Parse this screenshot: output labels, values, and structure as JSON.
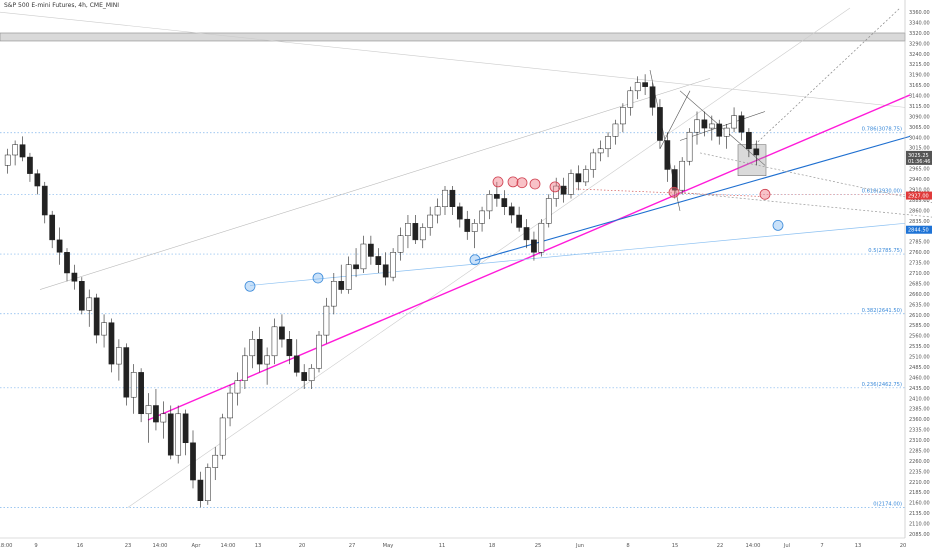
{
  "chart_data": {
    "type": "candlestick",
    "title": "S&P 500 E-mini Futures, 4h, CME_MINI",
    "y_axis": {
      "position": "right",
      "range": [
        2100,
        3380
      ],
      "tick_labels": [
        "3360.00",
        "3340.00",
        "3320.00",
        "3290.00",
        "3240.00",
        "3215.00",
        "3190.00",
        "3165.00",
        "3140.00",
        "3115.00",
        "3090.00",
        "3065.00",
        "3040.00",
        "3015.00",
        "2990.00",
        "2965.00",
        "2940.00",
        "2910.00",
        "2885.00",
        "2860.00",
        "2835.00",
        "2810.00",
        "2785.00",
        "2760.00",
        "2735.00",
        "2710.00",
        "2685.00",
        "2660.00",
        "2635.00",
        "2610.00",
        "2585.00",
        "2560.00",
        "2535.00",
        "2510.00",
        "2485.00",
        "2460.00",
        "2435.00",
        "2410.00",
        "2385.00",
        "2360.00",
        "2335.00",
        "2310.00",
        "2285.00",
        "2260.00",
        "2235.00",
        "2210.00",
        "2185.00",
        "2160.00",
        "2135.00",
        "2110.00",
        "2085.00"
      ]
    },
    "x_axis": {
      "tick_labels": [
        "18:00",
        "9",
        "16",
        "23",
        "14:00",
        "Apr",
        "14:00",
        "13",
        "20",
        "27",
        "May",
        "11",
        "18",
        "25",
        "Jun",
        "8",
        "15",
        "22",
        "14:00",
        "Jul",
        "7",
        "13",
        "20"
      ]
    },
    "price_labels": [
      {
        "text": "3025.25",
        "sub": "01:36:46",
        "value": 3025.25,
        "color": "#555555"
      },
      {
        "text": "2927.00",
        "value": 2927,
        "color": "#e03a3a"
      },
      {
        "text": "2844.50",
        "value": 2844.5,
        "color": "#1e73d6"
      }
    ],
    "fib_levels": [
      {
        "label": "0.786(3078.75)",
        "value": 3078.75
      },
      {
        "label": "0.618(2930.00)",
        "value": 2930
      },
      {
        "label": "0.5(2785.75)",
        "value": 2785.75
      },
      {
        "label": "0.382(2641.50)",
        "value": 2641.5
      },
      {
        "label": "0.236(2462.75)",
        "value": 2462.75
      },
      {
        "label": "0(2174.00)",
        "value": 2174
      }
    ],
    "candles": [
      [
        3000,
        3040,
        2980,
        3025
      ],
      [
        3025,
        3060,
        3000,
        3050
      ],
      [
        3050,
        3070,
        3010,
        3020
      ],
      [
        3020,
        3030,
        2960,
        2980
      ],
      [
        2980,
        2990,
        2930,
        2950
      ],
      [
        2950,
        2960,
        2860,
        2880
      ],
      [
        2880,
        2890,
        2800,
        2820
      ],
      [
        2820,
        2850,
        2760,
        2790
      ],
      [
        2790,
        2800,
        2720,
        2740
      ],
      [
        2740,
        2760,
        2700,
        2720
      ],
      [
        2720,
        2730,
        2640,
        2650
      ],
      [
        2650,
        2700,
        2610,
        2680
      ],
      [
        2680,
        2690,
        2570,
        2590
      ],
      [
        2590,
        2640,
        2560,
        2620
      ],
      [
        2620,
        2630,
        2500,
        2520
      ],
      [
        2520,
        2580,
        2480,
        2560
      ],
      [
        2560,
        2570,
        2420,
        2440
      ],
      [
        2440,
        2520,
        2400,
        2500
      ],
      [
        2500,
        2510,
        2380,
        2400
      ],
      [
        2400,
        2450,
        2330,
        2420
      ],
      [
        2420,
        2460,
        2360,
        2380
      ],
      [
        2380,
        2430,
        2340,
        2400
      ],
      [
        2400,
        2420,
        2290,
        2300
      ],
      [
        2300,
        2420,
        2280,
        2400
      ],
      [
        2400,
        2410,
        2300,
        2330
      ],
      [
        2330,
        2360,
        2220,
        2240
      ],
      [
        2240,
        2260,
        2174,
        2190
      ],
      [
        2190,
        2280,
        2180,
        2270
      ],
      [
        2270,
        2320,
        2240,
        2300
      ],
      [
        2300,
        2400,
        2290,
        2390
      ],
      [
        2390,
        2470,
        2370,
        2450
      ],
      [
        2450,
        2500,
        2420,
        2480
      ],
      [
        2480,
        2560,
        2460,
        2540
      ],
      [
        2540,
        2600,
        2510,
        2580
      ],
      [
        2580,
        2610,
        2500,
        2520
      ],
      [
        2520,
        2560,
        2470,
        2540
      ],
      [
        2540,
        2630,
        2520,
        2610
      ],
      [
        2610,
        2640,
        2560,
        2580
      ],
      [
        2580,
        2600,
        2520,
        2540
      ],
      [
        2540,
        2580,
        2490,
        2500
      ],
      [
        2500,
        2520,
        2460,
        2480
      ],
      [
        2480,
        2520,
        2460,
        2510
      ],
      [
        2510,
        2600,
        2500,
        2590
      ],
      [
        2590,
        2680,
        2570,
        2660
      ],
      [
        2660,
        2740,
        2640,
        2720
      ],
      [
        2720,
        2760,
        2690,
        2700
      ],
      [
        2700,
        2780,
        2690,
        2760
      ],
      [
        2760,
        2800,
        2730,
        2750
      ],
      [
        2750,
        2830,
        2740,
        2810
      ],
      [
        2810,
        2830,
        2760,
        2780
      ],
      [
        2780,
        2800,
        2740,
        2760
      ],
      [
        2760,
        2790,
        2710,
        2730
      ],
      [
        2730,
        2800,
        2720,
        2790
      ],
      [
        2790,
        2850,
        2770,
        2830
      ],
      [
        2830,
        2880,
        2800,
        2860
      ],
      [
        2860,
        2880,
        2810,
        2820
      ],
      [
        2820,
        2860,
        2800,
        2850
      ],
      [
        2850,
        2900,
        2830,
        2880
      ],
      [
        2880,
        2920,
        2860,
        2900
      ],
      [
        2900,
        2950,
        2880,
        2940
      ],
      [
        2940,
        2950,
        2880,
        2900
      ],
      [
        2900,
        2910,
        2850,
        2870
      ],
      [
        2870,
        2890,
        2820,
        2840
      ],
      [
        2840,
        2870,
        2800,
        2860
      ],
      [
        2860,
        2900,
        2840,
        2890
      ],
      [
        2890,
        2940,
        2870,
        2930
      ],
      [
        2930,
        2960,
        2900,
        2920
      ],
      [
        2920,
        2940,
        2880,
        2900
      ],
      [
        2900,
        2910,
        2860,
        2880
      ],
      [
        2880,
        2900,
        2840,
        2850
      ],
      [
        2850,
        2870,
        2800,
        2820
      ],
      [
        2820,
        2840,
        2770,
        2790
      ],
      [
        2790,
        2870,
        2780,
        2860
      ],
      [
        2860,
        2930,
        2850,
        2920
      ],
      [
        2920,
        2970,
        2900,
        2950
      ],
      [
        2950,
        2970,
        2910,
        2930
      ],
      [
        2930,
        2990,
        2920,
        2980
      ],
      [
        2980,
        3000,
        2940,
        2960
      ],
      [
        2960,
        3000,
        2950,
        2990
      ],
      [
        2990,
        3040,
        2970,
        3030
      ],
      [
        3030,
        3060,
        3010,
        3040
      ],
      [
        3040,
        3080,
        3020,
        3070
      ],
      [
        3070,
        3110,
        3050,
        3100
      ],
      [
        3100,
        3150,
        3080,
        3140
      ],
      [
        3140,
        3190,
        3120,
        3180
      ],
      [
        3180,
        3215,
        3160,
        3200
      ],
      [
        3200,
        3220,
        3170,
        3190
      ],
      [
        3190,
        3200,
        3120,
        3140
      ],
      [
        3140,
        3160,
        3040,
        3060
      ],
      [
        3060,
        3080,
        2960,
        2990
      ],
      [
        2990,
        3000,
        2920,
        2940
      ],
      [
        2940,
        3020,
        2930,
        3010
      ],
      [
        3010,
        3090,
        3000,
        3080
      ],
      [
        3080,
        3130,
        3050,
        3110
      ],
      [
        3110,
        3130,
        3070,
        3090
      ],
      [
        3090,
        3120,
        3060,
        3100
      ],
      [
        3100,
        3110,
        3050,
        3070
      ],
      [
        3070,
        3100,
        3040,
        3090
      ],
      [
        3090,
        3140,
        3080,
        3120
      ],
      [
        3120,
        3130,
        3060,
        3080
      ],
      [
        3080,
        3090,
        3020,
        3040
      ],
      [
        3040,
        3060,
        3000,
        3025
      ]
    ]
  }
}
